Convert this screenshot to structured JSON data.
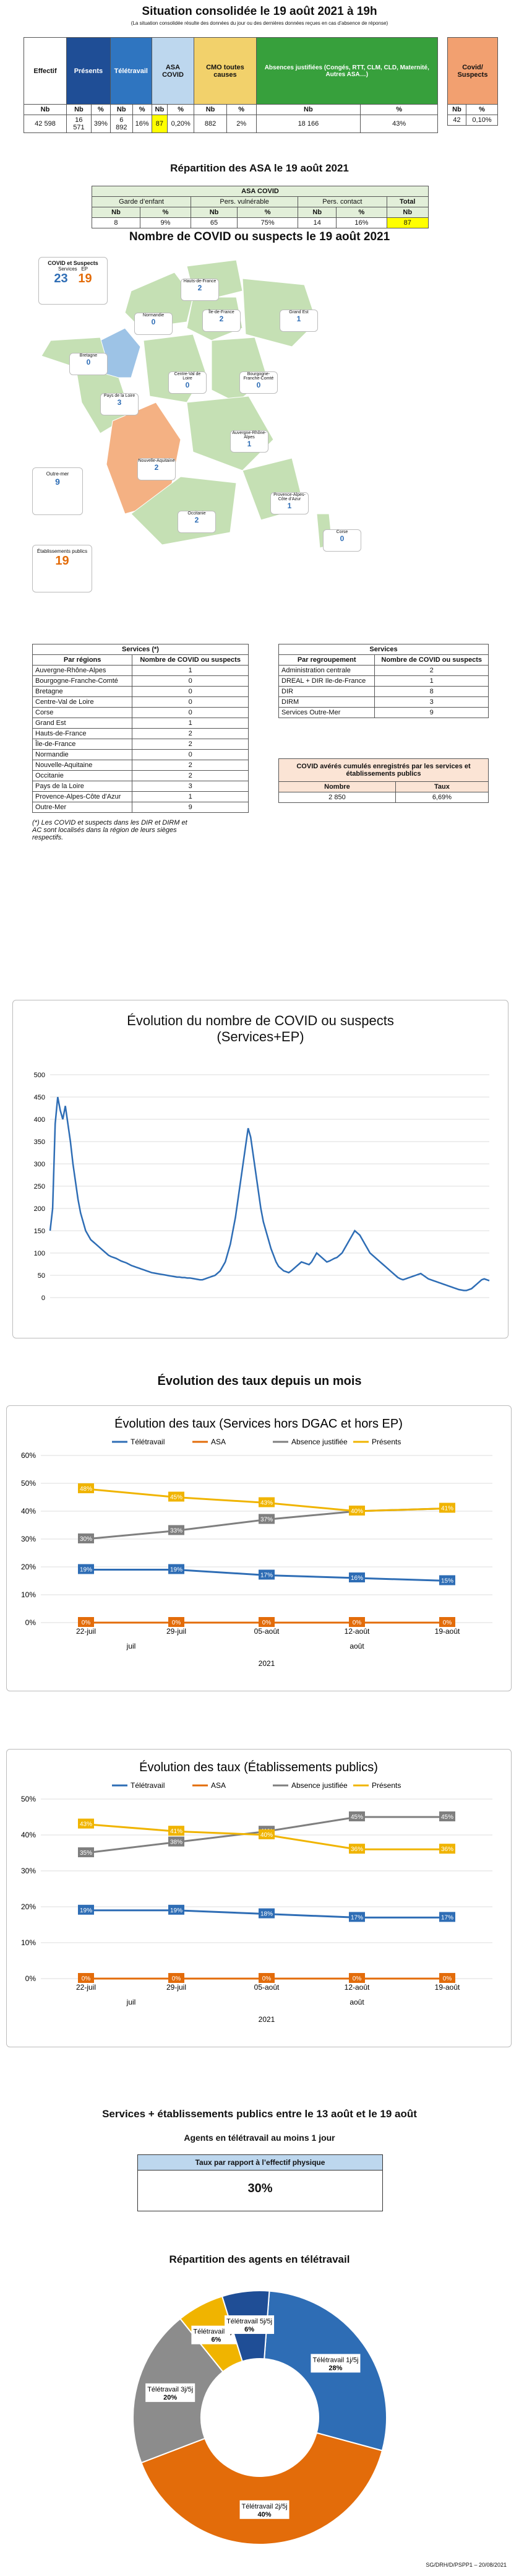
{
  "header": {
    "title": "Situation consolidée le 19 août 2021 à 19h",
    "note": "(La situation consolidée résulte des données du jour ou des dernières données reçues en cas d’absence de réponse)"
  },
  "summary": {
    "cols": [
      "Effectif",
      "Présents",
      "Télétravail",
      "ASA COVID",
      "CMO toutes causes",
      "Absences justifiées (Congés, RTT, CLM, CLD, Maternité, Autres ASA…)",
      "Covid/ Suspects"
    ],
    "sub": [
      "Nb",
      "Nb",
      "%",
      "Nb",
      "%",
      "Nb",
      "%",
      "Nb",
      "%",
      "Nb",
      "%",
      "Nb",
      "%",
      "Nb",
      "%"
    ],
    "vals": [
      "42 598",
      "16 571",
      "39%",
      "6 892",
      "16%",
      "87",
      "0,20%",
      "882",
      "2%",
      "18 166",
      "43%",
      "42",
      "0,10%"
    ]
  },
  "asa": {
    "title": "Répartition des ASA le 19 août 2021",
    "header": "ASA COVID",
    "cols": [
      "Garde d’enfant",
      "Pers. vulnérable",
      "Pers. contact",
      "Total"
    ],
    "sub": [
      "Nb",
      "%",
      "Nb",
      "%",
      "Nb",
      "%",
      "Nb"
    ],
    "vals": [
      "8",
      "9%",
      "65",
      "75%",
      "14",
      "16%",
      "87"
    ]
  },
  "map": {
    "title": "Nombre de COVID ou suspects le 19 août 2021",
    "legend_title": "COVID et Suspects",
    "legend_a": "Services",
    "legend_b": "EP",
    "val_a": "23",
    "val_b": "19",
    "outre_mer_label": "Outre-mer",
    "outre_mer_val": "9",
    "ep_label": "Établissements publics",
    "ep_val": "19",
    "regions": [
      {
        "name": "Hauts-de-France",
        "val": "2"
      },
      {
        "name": "Normandie",
        "val": "0"
      },
      {
        "name": "Île-de-France",
        "val": "2"
      },
      {
        "name": "Grand Est",
        "val": "1"
      },
      {
        "name": "Bretagne",
        "val": "0"
      },
      {
        "name": "Pays de la Loire",
        "val": "3"
      },
      {
        "name": "Centre-Val de Loire",
        "val": "0"
      },
      {
        "name": "Bourgogne-Franche-Comté",
        "val": "0"
      },
      {
        "name": "Nouvelle-Aquitaine",
        "val": "2"
      },
      {
        "name": "Auvergne-Rhône-Alpes",
        "val": "1"
      },
      {
        "name": "Occitanie",
        "val": "2"
      },
      {
        "name": "Provence-Alpes-Côte d’Azur",
        "val": "1"
      },
      {
        "name": "Corse",
        "val": "0"
      }
    ]
  },
  "services_regions": {
    "title": "Services (*)",
    "col1": "Par régions",
    "col2": "Nombre de COVID ou suspects",
    "rows": [
      [
        "Auvergne-Rhône-Alpes",
        "1"
      ],
      [
        "Bourgogne-Franche-Comté",
        "0"
      ],
      [
        "Bretagne",
        "0"
      ],
      [
        "Centre-Val de Loire",
        "0"
      ],
      [
        "Corse",
        "0"
      ],
      [
        "Grand Est",
        "1"
      ],
      [
        "Hauts-de-France",
        "2"
      ],
      [
        "Île-de-France",
        "2"
      ],
      [
        "Normandie",
        "0"
      ],
      [
        "Nouvelle-Aquitaine",
        "2"
      ],
      [
        "Occitanie",
        "2"
      ],
      [
        "Pays de la Loire",
        "3"
      ],
      [
        "Provence-Alpes-Côte d'Azur",
        "1"
      ],
      [
        "Outre-Mer",
        "9"
      ]
    ],
    "footnote": "(*) Les COVID et suspects dans les DIR et DIRM et AC sont localisés dans la région de leurs sièges respectifs."
  },
  "services_group": {
    "title": "Services",
    "col1": "Par regroupement",
    "col2": "Nombre de COVID ou suspects",
    "rows": [
      [
        "Administration centrale",
        "2"
      ],
      [
        "DREAL + DIR Ile-de-France",
        "1"
      ],
      [
        "DIR",
        "8"
      ],
      [
        "DIRM",
        "3"
      ],
      [
        "Services Outre-Mer",
        "9"
      ]
    ]
  },
  "ep_box": {
    "title": "COVID avérés cumulés enregistrés par les services et établissements publics",
    "col1": "Nombre",
    "col2": "Taux",
    "v1": "2 850",
    "v2": "6,69%"
  },
  "evo": {
    "title": "Évolution du nombre de COVID ou suspects",
    "subtitle": "(Services+EP)",
    "yticks": [
      "0",
      "50",
      "100",
      "150",
      "200",
      "250",
      "300",
      "350",
      "400",
      "450",
      "500"
    ],
    "series": [
      150,
      200,
      390,
      450,
      420,
      400,
      430,
      390,
      350,
      300,
      260,
      220,
      190,
      170,
      150,
      140,
      130,
      125,
      120,
      115,
      110,
      105,
      100,
      95,
      92,
      90,
      88,
      85,
      82,
      80,
      78,
      75,
      72,
      70,
      68,
      66,
      64,
      62,
      60,
      58,
      56,
      55,
      54,
      53,
      52,
      51,
      50,
      49,
      48,
      47,
      46,
      46,
      45,
      45,
      44,
      44,
      43,
      42,
      41,
      40,
      40,
      42,
      44,
      46,
      48,
      50,
      55,
      60,
      70,
      80,
      100,
      120,
      150,
      180,
      220,
      260,
      300,
      340,
      380,
      360,
      320,
      280,
      240,
      200,
      170,
      150,
      130,
      110,
      95,
      80,
      70,
      65,
      60,
      58,
      56,
      60,
      65,
      70,
      75,
      80,
      78,
      76,
      74,
      80,
      90,
      100,
      95,
      90,
      85,
      80,
      82,
      85,
      88,
      90,
      95,
      100,
      110,
      120,
      130,
      140,
      150,
      145,
      140,
      130,
      120,
      110,
      100,
      95,
      90,
      85,
      80,
      75,
      70,
      65,
      60,
      55,
      50,
      45,
      42,
      40,
      42,
      44,
      46,
      48,
      50,
      52,
      54,
      50,
      46,
      42,
      40,
      38,
      36,
      34,
      32,
      30,
      28,
      26,
      24,
      22,
      20,
      18,
      17,
      16,
      16,
      18,
      20,
      25,
      30,
      35,
      40,
      42,
      40,
      38
    ]
  },
  "taux_title": "Évolution des taux depuis un mois",
  "chart_data": [
    {
      "type": "line",
      "title": "Évolution des taux (Services hors DGAC et hors EP)",
      "categories": [
        "22-juil",
        "29-juil",
        "05-août",
        "12-août",
        "19-août"
      ],
      "groups": [
        "juil",
        "août"
      ],
      "year": "2021",
      "ylim": [
        0,
        60
      ],
      "yticks": [
        "0%",
        "10%",
        "20%",
        "30%",
        "40%",
        "50%",
        "60%"
      ],
      "series": [
        {
          "name": "Télétravail",
          "color": "#2e6db5",
          "values": [
            19,
            19,
            17,
            16,
            15
          ]
        },
        {
          "name": "ASA",
          "color": "#e36c0a",
          "values": [
            0,
            0,
            0,
            0,
            0
          ]
        },
        {
          "name": "Absence justifiée",
          "color": "#7f7f7f",
          "values": [
            30,
            33,
            37,
            40,
            41
          ]
        },
        {
          "name": "Présents",
          "color": "#f0b400",
          "values": [
            48,
            45,
            43,
            40,
            41
          ]
        }
      ]
    },
    {
      "type": "line",
      "title": "Évolution des taux (Établissements publics)",
      "categories": [
        "22-juil",
        "29-juil",
        "05-août",
        "12-août",
        "19-août"
      ],
      "groups": [
        "juil",
        "août"
      ],
      "year": "2021",
      "ylim": [
        0,
        50
      ],
      "yticks": [
        "0%",
        "10%",
        "20%",
        "30%",
        "40%",
        "50%"
      ],
      "series": [
        {
          "name": "Télétravail",
          "color": "#2e6db5",
          "values": [
            19,
            19,
            18,
            17,
            17
          ]
        },
        {
          "name": "ASA",
          "color": "#e36c0a",
          "values": [
            0,
            0,
            0,
            0,
            0
          ]
        },
        {
          "name": "Absence justifiée",
          "color": "#7f7f7f",
          "values": [
            35,
            38,
            41,
            45,
            45
          ]
        },
        {
          "name": "Présents",
          "color": "#f0b400",
          "values": [
            43,
            41,
            40,
            36,
            36
          ]
        }
      ]
    },
    {
      "type": "pie",
      "title": "Répartition des agents en télétravail",
      "slices": [
        {
          "name": "Télétravail 1j/5j",
          "value": 28,
          "color": "#2e6db5"
        },
        {
          "name": "Télétravail 2j/5j",
          "value": 40,
          "color": "#e36c0a"
        },
        {
          "name": "Télétravail 3j/5j",
          "value": 20,
          "color": "#8c8c8c"
        },
        {
          "name": "Télétravail 4j/5j",
          "value": 6,
          "color": "#f0b400"
        },
        {
          "name": "Télétravail 5j/5j",
          "value": 6,
          "color": "#1f4e96"
        }
      ]
    }
  ],
  "bottom": {
    "title": "Services + établissements publics entre le 13 août et le 19 août",
    "sub": "Agents en télétravail au moins 1 jour",
    "box_label": "Taux par rapport à l’effectif physique",
    "box_val": "30%",
    "footer": "SG/DRH/D/PSPP1 – 20/08/2021"
  }
}
